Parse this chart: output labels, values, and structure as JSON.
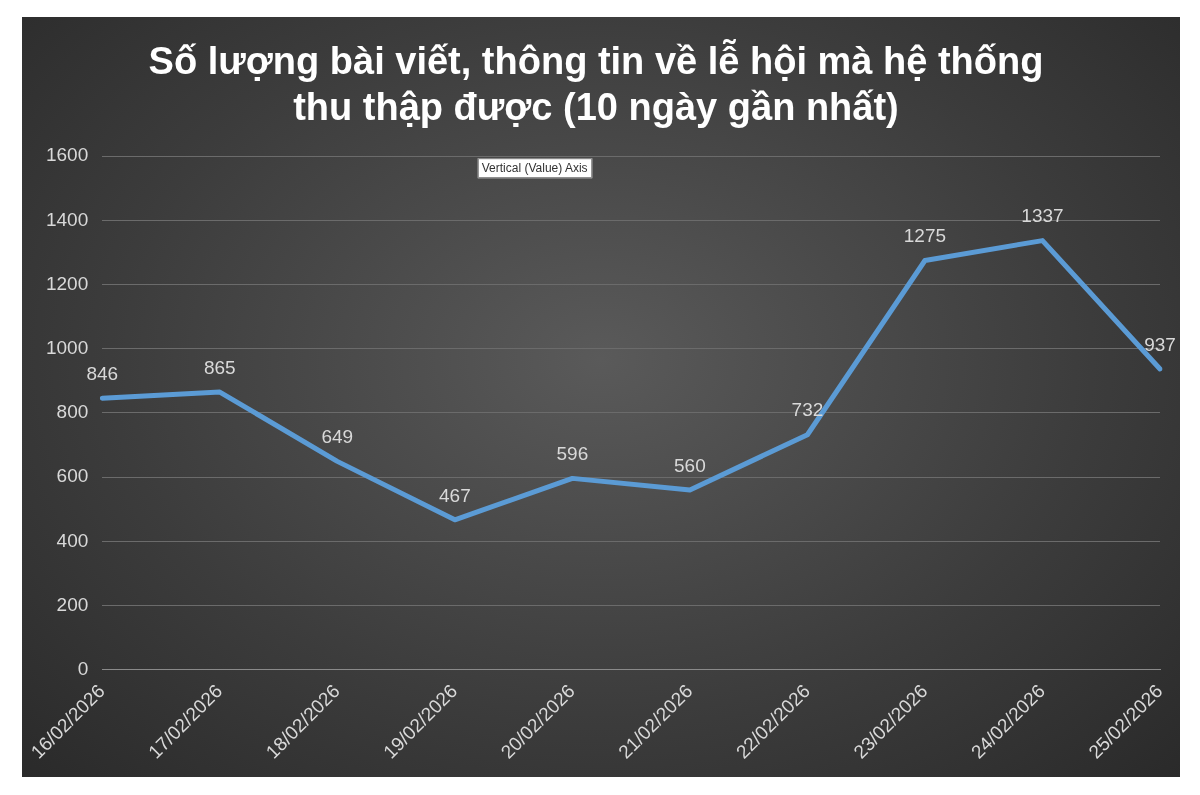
{
  "chart_data": {
    "type": "line",
    "title": "Số lượng bài viết, thông tin về lễ hội mà hệ thống thu thập được (10 ngày gần nhất)",
    "categories": [
      "16/02/2026",
      "17/02/2026",
      "18/02/2026",
      "19/02/2026",
      "20/02/2026",
      "21/02/2026",
      "22/02/2026",
      "23/02/2026",
      "24/02/2026",
      "25/02/2026"
    ],
    "series": [
      {
        "color": "#5b9bd5",
        "values": [
          846,
          865,
          649,
          467,
          596,
          560,
          732,
          1275,
          1337,
          937
        ]
      }
    ],
    "ylim": [
      0,
      1600
    ],
    "yticks": [
      0,
      200,
      400,
      600,
      800,
      1000,
      1200,
      1400,
      1600
    ],
    "grid": "y",
    "legend": false,
    "marker": "none",
    "line_style": "solid",
    "data_labels": true,
    "annotations": [
      "Vertical (Value) Axis"
    ]
  }
}
